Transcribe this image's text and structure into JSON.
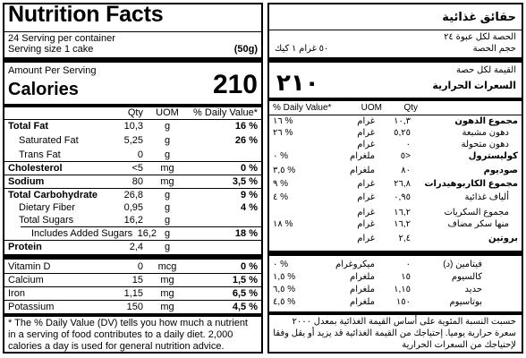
{
  "english": {
    "title": "Nutrition Facts",
    "servings_per_container": "24 Serving per container",
    "serving_size_label": "Serving size 1 cake",
    "serving_size_value": "(50g)",
    "amount_per_serving": "Amount Per Serving",
    "calories_label": "Calories",
    "calories_value": "210",
    "headers": {
      "qty": "Qty",
      "uom": "UOM",
      "dv": "% Daily Value*"
    },
    "nutrients": [
      {
        "name": "Total Fat",
        "qty": "10,3",
        "uom": "g",
        "dv": "16 %"
      },
      {
        "name": "Saturated Fat",
        "qty": "5,25",
        "uom": "g",
        "dv": "26 %"
      },
      {
        "name": "Trans Fat",
        "qty": "0",
        "uom": "g",
        "dv": ""
      },
      {
        "name": "Cholesterol",
        "qty": "<5",
        "uom": "mg",
        "dv": "0 %"
      },
      {
        "name": "Sodium",
        "qty": "80",
        "uom": "mg",
        "dv": "3,5 %"
      },
      {
        "name": "Total Carbohydrate",
        "qty": "26,8",
        "uom": "g",
        "dv": "9 %"
      },
      {
        "name": "Dietary Fiber",
        "qty": "0,95",
        "uom": "g",
        "dv": "4 %"
      },
      {
        "name": "Total Sugars",
        "qty": "16,2",
        "uom": "g",
        "dv": ""
      },
      {
        "name": "Includes Added Sugars",
        "qty": "16,2",
        "uom": "g",
        "dv": "18 %"
      },
      {
        "name": "Protein",
        "qty": "2,4",
        "uom": "g",
        "dv": ""
      }
    ],
    "micronutrients": [
      {
        "name": "Vitamin D",
        "qty": "0",
        "uom": "mcg",
        "dv": "0 %"
      },
      {
        "name": "Calcium",
        "qty": "15",
        "uom": "mg",
        "dv": "1,5 %"
      },
      {
        "name": "Iron",
        "qty": "1,15",
        "uom": "mg",
        "dv": "6,5 %"
      },
      {
        "name": "Potassium",
        "qty": "150",
        "uom": "mg",
        "dv": "4,5 %"
      }
    ],
    "footnote": "* The % Daily Value (DV) tells you how much a nutrient in a serving of food contributes to a daily diet. 2,000 calories a day is used for general nutrition advice."
  },
  "arabic": {
    "title": "حقائق غذائية",
    "servings_per_container": "الحصة لكل عبوة ٢٤",
    "serving_size_label": "حجم الحصة",
    "serving_size_value": "٥٠ غرام ١ كيك",
    "amount_per_serving": "القيمة لكل حصة",
    "calories_label": "السعرات الحرارية",
    "calories_value": "٢١٠",
    "headers": {
      "qty": "Qty",
      "uom": "UOM",
      "dv": "% Daily Value*"
    },
    "nutrients": [
      {
        "name": "مجموع الدهون",
        "qty": "١٠,٣",
        "uom": "غرام",
        "dv": "% ١٦"
      },
      {
        "name": "دهون مشبعة",
        "qty": "٥,٢٥",
        "uom": "غرام",
        "dv": "% ٢٦"
      },
      {
        "name": "دهون متحولة",
        "qty": "٠",
        "uom": "غرام",
        "dv": ""
      },
      {
        "name": "كوليسترول",
        "qty": "<٥",
        "uom": "ملغرام",
        "dv": "% ٠"
      },
      {
        "name": "صوديوم",
        "qty": "٨٠",
        "uom": "ملغرام",
        "dv": "% ٣,٥"
      },
      {
        "name": "مجموع الكاربوهيدرات",
        "qty": "٢٦,٨",
        "uom": "غرام",
        "dv": "% ٩"
      },
      {
        "name": "ألياف غذائية",
        "qty": "٠,٩٥",
        "uom": "غرام",
        "dv": "% ٤"
      },
      {
        "name": "مجموع السكريات",
        "qty": "١٦,٢",
        "uom": "غرام",
        "dv": ""
      },
      {
        "name": "منها سكر مضاف",
        "qty": "١٦,٢",
        "uom": "غرام",
        "dv": "% ١٨"
      },
      {
        "name": "بروتين",
        "qty": "٢,٤",
        "uom": "غرام",
        "dv": ""
      }
    ],
    "micronutrients": [
      {
        "name": "فيتامين (د)",
        "qty": "٠",
        "uom": "ميكروغرام",
        "dv": "% ٠"
      },
      {
        "name": "كالسيوم",
        "qty": "١٥",
        "uom": "ملغرام",
        "dv": "% ١,٥"
      },
      {
        "name": "حديد",
        "qty": "١,١٥",
        "uom": "ملغرام",
        "dv": "% ٦,٥"
      },
      {
        "name": "بوتاسيوم",
        "qty": "١٥٠",
        "uom": "ملغرام",
        "dv": "% ٤,٥"
      }
    ],
    "footnote": "حسبت النسبة المئوية على أساس القيمة الغذائية بمعدل ٢٠٠٠ سعرة حرارية يوميا. إحتياجك من القيمة الغذائية قد يزيد أو يقل وفقا لإحتياجك من السعرات الحرارية"
  }
}
